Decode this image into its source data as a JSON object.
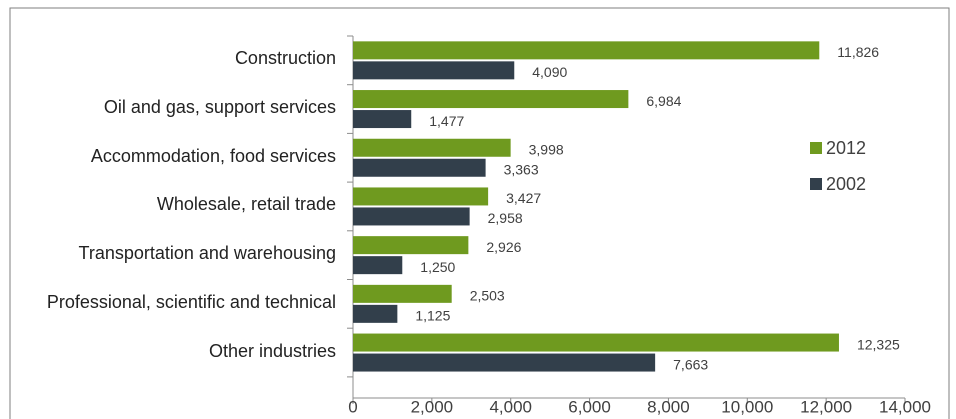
{
  "chart_data": {
    "type": "hbar",
    "categories": [
      "Construction",
      "Oil and gas, support services",
      "Accommodation, food services",
      "Wholesale, retail trade",
      "Transportation and warehousing",
      "Professional, scientific and technical",
      "Other industries"
    ],
    "series": [
      {
        "name": "2012",
        "color": "#6f9a1f",
        "values": [
          11826,
          6984,
          3998,
          3427,
          2926,
          2503,
          12325
        ],
        "value_labels": [
          "11,826",
          "6,984",
          "3,998",
          "3,427",
          "2,926",
          "2,503",
          "12,325"
        ]
      },
      {
        "name": "2002",
        "color": "#323f4b",
        "values": [
          4090,
          1477,
          3363,
          2958,
          1250,
          1125,
          7663
        ],
        "value_labels": [
          "4,090",
          "1,477",
          "3,363",
          "2,958",
          "1,250",
          "1,125",
          "7,663"
        ]
      }
    ],
    "xlim": [
      0,
      14000
    ],
    "xticks": [
      0,
      {
        "value": 2000,
        "label": "2,000"
      },
      {
        "value": 4000,
        "label": "4,000"
      },
      {
        "value": 6000,
        "label": "6,000"
      },
      {
        "value": 8000,
        "label": "8,000"
      },
      {
        "value": 10000,
        "label": "10,000"
      },
      {
        "value": 12000,
        "label": "12,000"
      },
      {
        "value": 14000,
        "label": "14,000"
      }
    ],
    "legend": "right"
  }
}
